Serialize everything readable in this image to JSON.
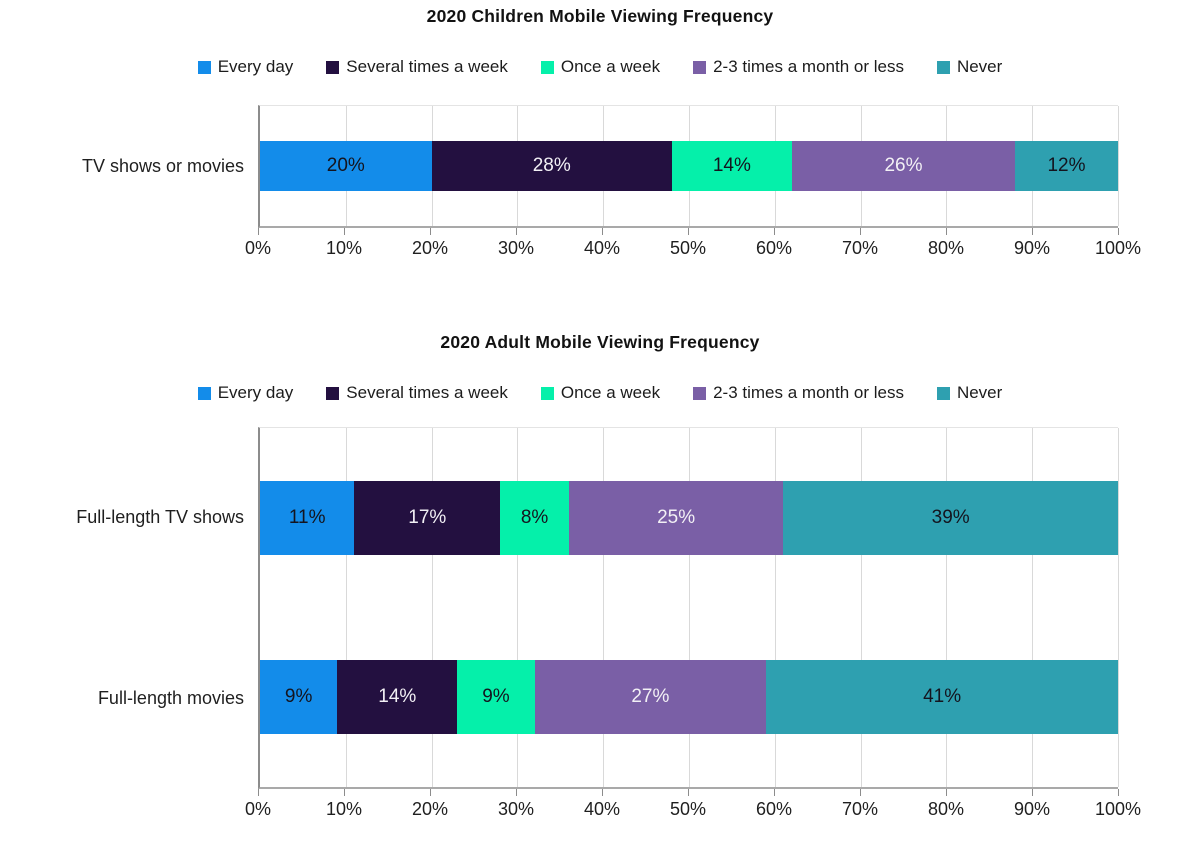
{
  "page": {
    "background": "#ffffff"
  },
  "chart_data": [
    {
      "type": "bar",
      "orientation": "horizontal",
      "stacked": true,
      "title": "2020 Children Mobile Viewing Frequency",
      "categories": [
        "TV shows or movies"
      ],
      "series": [
        {
          "name": "Every day",
          "color": "#138CEA",
          "label_color": "#14141e",
          "values": [
            20
          ]
        },
        {
          "name": "Several times a week",
          "color": "#231040",
          "label_color": "#f2f0f5",
          "values": [
            28
          ]
        },
        {
          "name": "Once a week",
          "color": "#05F0AA",
          "label_color": "#14141e",
          "values": [
            14
          ]
        },
        {
          "name": "2-3 times a month or less",
          "color": "#7A5FA6",
          "label_color": "#f2f0f5",
          "values": [
            26
          ]
        },
        {
          "name": "Never",
          "color": "#2EA0B0",
          "label_color": "#14141e",
          "values": [
            12
          ]
        }
      ],
      "value_suffix": "%",
      "xlim": [
        0,
        100
      ],
      "x_ticks": [
        "0%",
        "10%",
        "20%",
        "30%",
        "40%",
        "50%",
        "60%",
        "70%",
        "80%",
        "90%",
        "100%"
      ],
      "grid": "vertical",
      "legend_position": "top"
    },
    {
      "type": "bar",
      "orientation": "horizontal",
      "stacked": true,
      "title": "2020 Adult Mobile Viewing Frequency",
      "categories": [
        "Full-length TV shows",
        "Full-length movies"
      ],
      "series": [
        {
          "name": "Every day",
          "color": "#138CEA",
          "label_color": "#14141e",
          "values": [
            11,
            9
          ]
        },
        {
          "name": "Several times a week",
          "color": "#231040",
          "label_color": "#f2f0f5",
          "values": [
            17,
            14
          ]
        },
        {
          "name": "Once a week",
          "color": "#05F0AA",
          "label_color": "#14141e",
          "values": [
            8,
            9
          ]
        },
        {
          "name": "2-3 times a month or less",
          "color": "#7A5FA6",
          "label_color": "#f2f0f5",
          "values": [
            25,
            27
          ]
        },
        {
          "name": "Never",
          "color": "#2EA0B0",
          "label_color": "#14141e",
          "values": [
            39,
            41
          ]
        }
      ],
      "value_suffix": "%",
      "xlim": [
        0,
        100
      ],
      "x_ticks": [
        "0%",
        "10%",
        "20%",
        "30%",
        "40%",
        "50%",
        "60%",
        "70%",
        "80%",
        "90%",
        "100%"
      ],
      "grid": "vertical",
      "legend_position": "top"
    }
  ]
}
